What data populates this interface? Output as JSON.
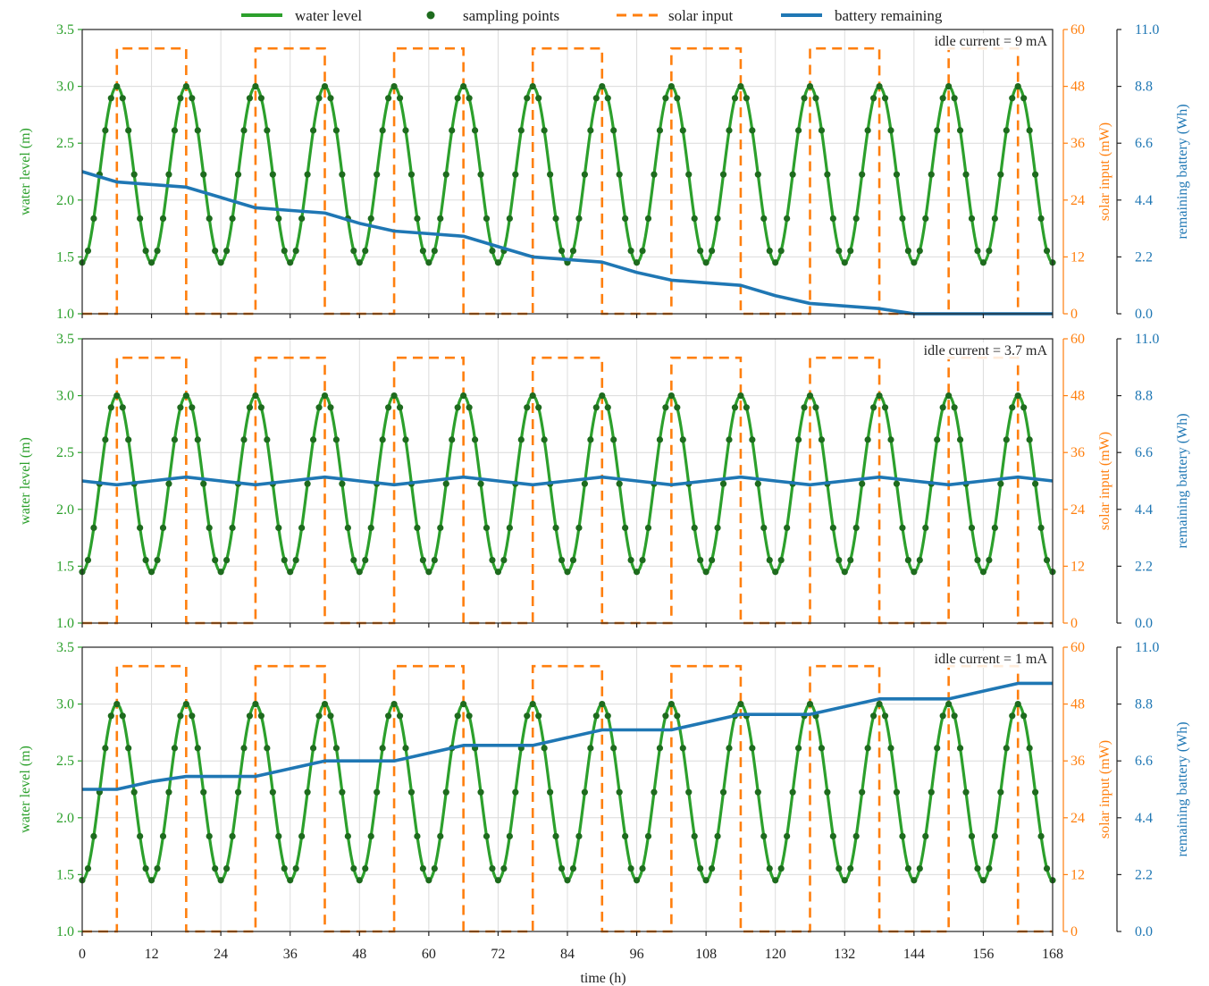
{
  "legend": {
    "water_level": "water level",
    "sampling_points": "sampling points",
    "solar_input": "solar input",
    "battery_remaining": "battery remaining"
  },
  "colors": {
    "water": "#2ca02c",
    "sampling": "#1e6b1e",
    "solar": "#ff7f0e",
    "battery": "#1f77b4",
    "grid": "#dcdcdc"
  },
  "xlabel": "time (h)",
  "chart_data": [
    {
      "type": "line",
      "annotation": "idle current = 9 mA",
      "xlim": [
        0,
        168
      ],
      "x_ticks": [
        0,
        12,
        24,
        36,
        48,
        60,
        72,
        84,
        96,
        108,
        120,
        132,
        144,
        156,
        168
      ],
      "ylabel": "water level (m)",
      "ylim": [
        1.0,
        3.5
      ],
      "y_ticks": [
        "1.0",
        "1.5",
        "2.0",
        "2.5",
        "3.0",
        "3.5"
      ],
      "y2label": "solar input (mW)",
      "y2lim": [
        0,
        60
      ],
      "y2_ticks": [
        "0",
        "12",
        "24",
        "36",
        "48",
        "60"
      ],
      "y3label": "remaining battery (Wh)",
      "y3lim": [
        0,
        11.0
      ],
      "y3_ticks": [
        "0.0",
        "2.2",
        "4.4",
        "6.6",
        "8.8",
        "11.0"
      ],
      "water_level": {
        "mean": 2.225,
        "amplitude": 0.775,
        "period_h": 12,
        "phase_min_h": 0,
        "sample_interval_h": 1
      },
      "solar_input": {
        "on_value": 56,
        "off_value": 0,
        "on_from_h": 6,
        "on_to_h": 18,
        "period_h": 24
      },
      "battery_remaining": {
        "x": [
          0,
          6,
          12,
          18,
          24,
          30,
          36,
          42,
          48,
          54,
          60,
          66,
          72,
          78,
          84,
          90,
          96,
          102,
          108,
          114,
          120,
          126,
          132,
          138,
          144,
          168
        ],
        "y": [
          5.5,
          5.1,
          5.0,
          4.9,
          4.5,
          4.1,
          4.0,
          3.9,
          3.5,
          3.2,
          3.1,
          3.0,
          2.6,
          2.2,
          2.1,
          2.0,
          1.6,
          1.3,
          1.2,
          1.1,
          0.7,
          0.4,
          0.3,
          0.2,
          0.0,
          0.0
        ]
      }
    },
    {
      "type": "line",
      "annotation": "idle current = 3.7 mA",
      "xlim": [
        0,
        168
      ],
      "x_ticks": [
        0,
        12,
        24,
        36,
        48,
        60,
        72,
        84,
        96,
        108,
        120,
        132,
        144,
        156,
        168
      ],
      "ylabel": "water level (m)",
      "ylim": [
        1.0,
        3.5
      ],
      "y_ticks": [
        "1.0",
        "1.5",
        "2.0",
        "2.5",
        "3.0",
        "3.5"
      ],
      "y2label": "solar input (mW)",
      "y2lim": [
        0,
        60
      ],
      "y2_ticks": [
        "0",
        "12",
        "24",
        "36",
        "48",
        "60"
      ],
      "y3label": "remaining battery (Wh)",
      "y3lim": [
        0,
        11.0
      ],
      "y3_ticks": [
        "0.0",
        "2.2",
        "4.4",
        "6.6",
        "8.8",
        "11.0"
      ],
      "water_level": {
        "mean": 2.225,
        "amplitude": 0.775,
        "period_h": 12,
        "phase_min_h": 0,
        "sample_interval_h": 1
      },
      "solar_input": {
        "on_value": 56,
        "off_value": 0,
        "on_from_h": 6,
        "on_to_h": 18,
        "period_h": 24
      },
      "battery_remaining": {
        "x": [
          0,
          6,
          12,
          18,
          24,
          30,
          36,
          42,
          48,
          54,
          60,
          66,
          72,
          78,
          84,
          90,
          96,
          102,
          108,
          114,
          120,
          126,
          132,
          138,
          144,
          150,
          156,
          162,
          168
        ],
        "y": [
          5.5,
          5.35,
          5.5,
          5.65,
          5.5,
          5.35,
          5.5,
          5.65,
          5.5,
          5.35,
          5.5,
          5.65,
          5.5,
          5.35,
          5.5,
          5.65,
          5.5,
          5.35,
          5.5,
          5.65,
          5.5,
          5.35,
          5.5,
          5.65,
          5.5,
          5.35,
          5.5,
          5.65,
          5.5
        ]
      }
    },
    {
      "type": "line",
      "annotation": "idle current = 1 mA",
      "xlim": [
        0,
        168
      ],
      "x_ticks": [
        0,
        12,
        24,
        36,
        48,
        60,
        72,
        84,
        96,
        108,
        120,
        132,
        144,
        156,
        168
      ],
      "ylabel": "water level (m)",
      "ylim": [
        1.0,
        3.5
      ],
      "y_ticks": [
        "1.0",
        "1.5",
        "2.0",
        "2.5",
        "3.0",
        "3.5"
      ],
      "y2label": "solar input (mW)",
      "y2lim": [
        0,
        60
      ],
      "y2_ticks": [
        "0",
        "12",
        "24",
        "36",
        "48",
        "60"
      ],
      "y3label": "remaining battery (Wh)",
      "y3lim": [
        0,
        11.0
      ],
      "y3_ticks": [
        "0.0",
        "2.2",
        "4.4",
        "6.6",
        "8.8",
        "11.0"
      ],
      "water_level": {
        "mean": 2.225,
        "amplitude": 0.775,
        "period_h": 12,
        "phase_min_h": 0,
        "sample_interval_h": 1
      },
      "solar_input": {
        "on_value": 56,
        "off_value": 0,
        "on_from_h": 6,
        "on_to_h": 18,
        "period_h": 24
      },
      "battery_remaining": {
        "x": [
          0,
          6,
          12,
          18,
          24,
          30,
          36,
          42,
          48,
          54,
          60,
          66,
          72,
          78,
          84,
          90,
          96,
          102,
          108,
          114,
          120,
          126,
          132,
          138,
          144,
          150,
          156,
          162,
          168
        ],
        "y": [
          5.5,
          5.5,
          5.8,
          6.0,
          6.0,
          6.0,
          6.3,
          6.6,
          6.6,
          6.6,
          6.9,
          7.2,
          7.2,
          7.2,
          7.5,
          7.8,
          7.8,
          7.8,
          8.1,
          8.4,
          8.4,
          8.4,
          8.7,
          9.0,
          9.0,
          9.0,
          9.3,
          9.6,
          9.6
        ]
      }
    }
  ]
}
